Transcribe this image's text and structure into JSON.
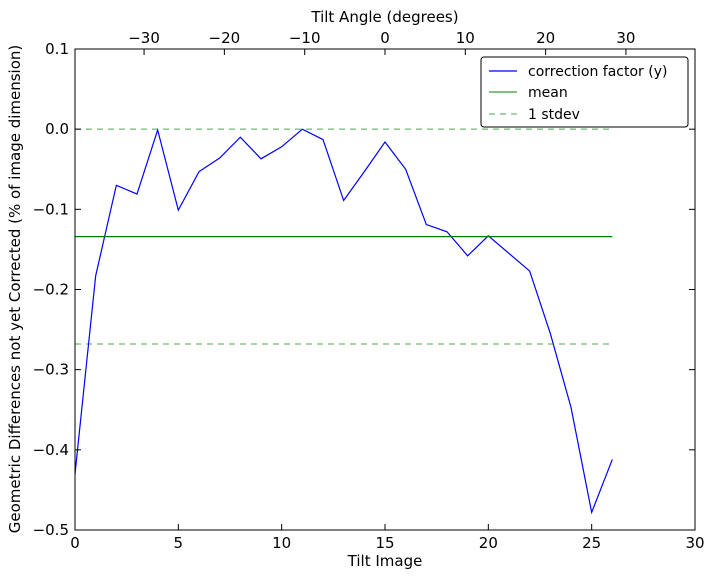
{
  "chart_data": {
    "type": "line",
    "xlabel": "Tilt Image",
    "ylabel": "Geometric Differences not yet Corrected (% of image dimension)",
    "top_xlabel": "Tilt Angle (degrees)",
    "xlim": [
      0,
      30
    ],
    "ylim": [
      -0.5,
      0.1
    ],
    "top_xlim": [
      -38.6,
      38.6
    ],
    "xticks": [
      0,
      5,
      10,
      15,
      20,
      25,
      30
    ],
    "xtick_labels": [
      "0",
      "5",
      "10",
      "15",
      "20",
      "25",
      "30"
    ],
    "yticks": [
      -0.5,
      -0.4,
      -0.3,
      -0.2,
      -0.1,
      0.0,
      0.1
    ],
    "ytick_labels": [
      "−0.5",
      "−0.4",
      "−0.3",
      "−0.2",
      "−0.1",
      "0.0",
      "0.1"
    ],
    "top_xticks": [
      -30,
      -20,
      -10,
      0,
      10,
      20,
      30
    ],
    "top_xtick_labels": [
      "−30",
      "−20",
      "−10",
      "0",
      "10",
      "20",
      "30"
    ],
    "grid": false,
    "legend_position": "top-right",
    "series": [
      {
        "name": "correction factor (y)",
        "color": "#0000ff",
        "style": "solid",
        "x": [
          0,
          1,
          2,
          3,
          4,
          5,
          6,
          7,
          8,
          9,
          10,
          11,
          12,
          13,
          14,
          15,
          16,
          17,
          18,
          19,
          20,
          21,
          22,
          23,
          24,
          25,
          26
        ],
        "y": [
          -0.43,
          -0.183,
          -0.07,
          -0.081,
          -0.001,
          -0.101,
          -0.053,
          -0.036,
          -0.01,
          -0.037,
          -0.022,
          0.0,
          -0.013,
          -0.089,
          -0.053,
          -0.016,
          -0.05,
          -0.119,
          -0.128,
          -0.158,
          -0.133,
          -0.155,
          -0.177,
          -0.255,
          -0.347,
          -0.478,
          -0.412
        ]
      },
      {
        "name": "mean",
        "color": "#008000",
        "style": "solid",
        "x": [
          0,
          26
        ],
        "y": [
          -0.134,
          -0.134
        ]
      },
      {
        "name": "1 stdev",
        "color": "#008000",
        "style": "dashed",
        "x": [
          0,
          26
        ],
        "y": [
          -0.268,
          -0.268
        ]
      },
      {
        "name": "",
        "color": "#008000",
        "style": "dashed",
        "x": [
          0,
          26
        ],
        "y": [
          0.0,
          0.0
        ]
      }
    ]
  }
}
